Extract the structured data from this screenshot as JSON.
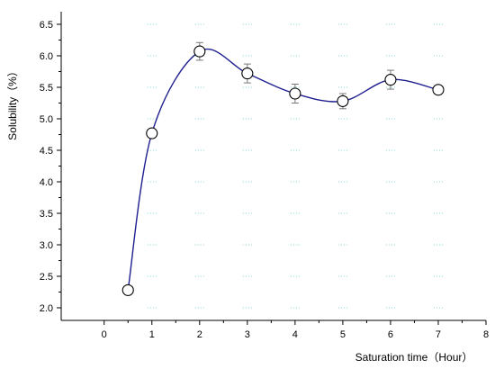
{
  "chart_data": {
    "type": "scatter",
    "title": "",
    "xlabel": "Saturation time（Hour）",
    "ylabel": "Solubility（%）",
    "xlim": [
      -0.9,
      8
    ],
    "ylim": [
      1.8,
      6.7
    ],
    "xticks": [
      0,
      1,
      2,
      3,
      4,
      5,
      6,
      7,
      8
    ],
    "xtick_labels": [
      "0",
      "1",
      "2",
      "3",
      "4",
      "5",
      "6",
      "7",
      "8"
    ],
    "yticks": [
      2.0,
      2.5,
      3.0,
      3.5,
      4.0,
      4.5,
      5.0,
      5.5,
      6.0,
      6.5
    ],
    "ytick_labels": [
      "2.0",
      "2.5",
      "3.0",
      "3.5",
      "4.0",
      "4.5",
      "5.0",
      "5.5",
      "6.0",
      "6.5"
    ],
    "grid": true,
    "legend": "none",
    "smooth_curve": true,
    "series": [
      {
        "x": [
          0.5,
          1,
          2,
          3,
          4,
          5,
          6,
          7
        ],
        "y": [
          2.28,
          4.77,
          6.07,
          5.72,
          5.4,
          5.28,
          5.62,
          5.46
        ],
        "error": [
          0.04,
          0.0,
          0.14,
          0.15,
          0.15,
          0.12,
          0.15,
          0.0
        ]
      }
    ],
    "colors": {
      "curve": "#1f1f8f",
      "marker": "#000000",
      "grid": "#7fd4d0",
      "axis": "#000000"
    }
  }
}
